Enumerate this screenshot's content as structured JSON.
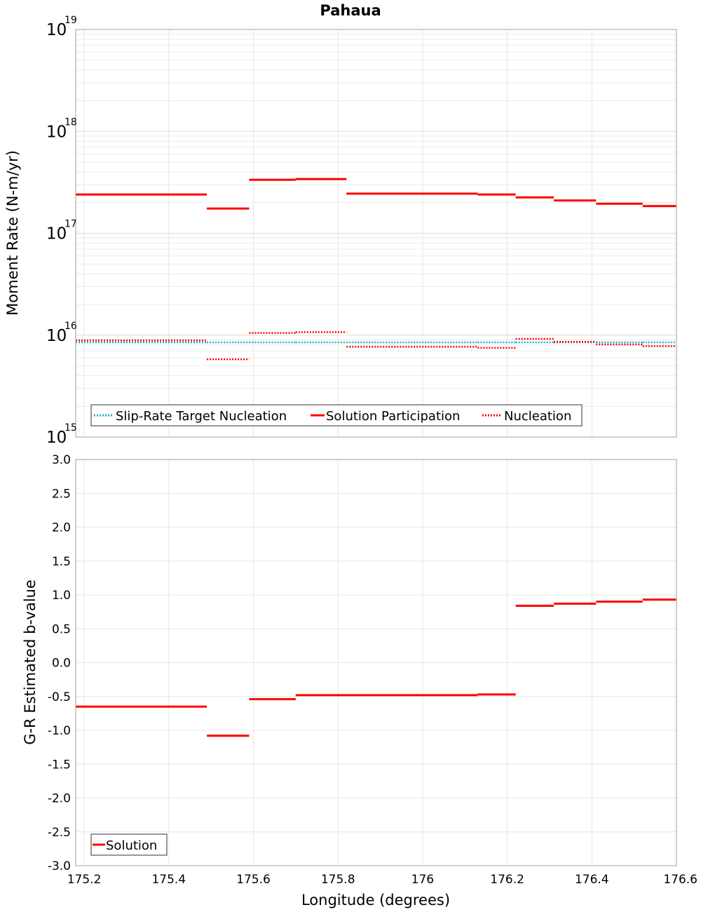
{
  "chart_data": [
    {
      "type": "line",
      "subtype": "step",
      "title": "Pahaua",
      "xlabel": "",
      "ylabel": "Moment Rate (N-m/yr)",
      "yscale": "log",
      "ylim": [
        1000000000000000.0,
        1e+19
      ],
      "xlim": [
        175.18,
        176.6
      ],
      "y_tick_labels": [
        {
          "base": "10",
          "exp": "15",
          "value": 1000000000000000.0
        },
        {
          "base": "10",
          "exp": "16",
          "value": 1e+16
        },
        {
          "base": "10",
          "exp": "17",
          "value": 1e+17
        },
        {
          "base": "10",
          "exp": "18",
          "value": 1e+18
        },
        {
          "base": "10",
          "exp": "19",
          "value": 1e+19
        }
      ],
      "grid": true,
      "legend": {
        "placement": "bottom-left",
        "entries": [
          "Slip-Rate Target Nucleation",
          "Solution Participation",
          "Nucleation"
        ]
      },
      "series": [
        {
          "name": "Slip-Rate Target Nucleation",
          "color": "#20b0c0",
          "style": "dotted",
          "segments": [
            {
              "x0": 175.18,
              "x1": 175.49,
              "y": 8500000000000000.0
            },
            {
              "x0": 175.49,
              "x1": 175.59,
              "y": 8500000000000000.0
            },
            {
              "x0": 175.59,
              "x1": 175.7,
              "y": 8500000000000000.0
            },
            {
              "x0": 175.7,
              "x1": 175.82,
              "y": 8500000000000000.0
            },
            {
              "x0": 175.82,
              "x1": 176.13,
              "y": 8500000000000000.0
            },
            {
              "x0": 176.13,
              "x1": 176.22,
              "y": 8500000000000000.0
            },
            {
              "x0": 176.22,
              "x1": 176.31,
              "y": 8500000000000000.0
            },
            {
              "x0": 176.31,
              "x1": 176.41,
              "y": 8500000000000000.0
            },
            {
              "x0": 176.41,
              "x1": 176.52,
              "y": 8500000000000000.0
            },
            {
              "x0": 176.52,
              "x1": 176.6,
              "y": 8500000000000000.0
            }
          ]
        },
        {
          "name": "Solution Participation",
          "color": "#ff0000",
          "style": "solid",
          "segments": [
            {
              "x0": 175.18,
              "x1": 175.49,
              "y": 2.4e+17
            },
            {
              "x0": 175.49,
              "x1": 175.59,
              "y": 1.75e+17
            },
            {
              "x0": 175.59,
              "x1": 175.7,
              "y": 3.35e+17
            },
            {
              "x0": 175.7,
              "x1": 175.82,
              "y": 3.4e+17
            },
            {
              "x0": 175.82,
              "x1": 176.13,
              "y": 2.45e+17
            },
            {
              "x0": 176.13,
              "x1": 176.22,
              "y": 2.4e+17
            },
            {
              "x0": 176.22,
              "x1": 176.31,
              "y": 2.25e+17
            },
            {
              "x0": 176.31,
              "x1": 176.41,
              "y": 2.1e+17
            },
            {
              "x0": 176.41,
              "x1": 176.52,
              "y": 1.95e+17
            },
            {
              "x0": 176.52,
              "x1": 176.6,
              "y": 1.85e+17
            }
          ]
        },
        {
          "name": "Nucleation",
          "color": "#ff0000",
          "style": "dotted",
          "segments": [
            {
              "x0": 175.18,
              "x1": 175.49,
              "y": 8900000000000000.0
            },
            {
              "x0": 175.49,
              "x1": 175.59,
              "y": 5800000000000000.0
            },
            {
              "x0": 175.59,
              "x1": 175.7,
              "y": 1.05e+16
            },
            {
              "x0": 175.7,
              "x1": 175.82,
              "y": 1.07e+16
            },
            {
              "x0": 175.82,
              "x1": 176.13,
              "y": 7700000000000000.0
            },
            {
              "x0": 176.13,
              "x1": 176.22,
              "y": 7500000000000000.0
            },
            {
              "x0": 176.22,
              "x1": 176.31,
              "y": 9200000000000000.0
            },
            {
              "x0": 176.31,
              "x1": 176.41,
              "y": 8600000000000000.0
            },
            {
              "x0": 176.41,
              "x1": 176.52,
              "y": 8100000000000000.0
            },
            {
              "x0": 176.52,
              "x1": 176.6,
              "y": 7800000000000000.0
            }
          ]
        }
      ]
    },
    {
      "type": "line",
      "subtype": "step",
      "title": "",
      "xlabel": "Longitude (degrees)",
      "ylabel": "G-R Estimated b-value",
      "ylim": [
        -3.0,
        3.0
      ],
      "xlim": [
        175.18,
        176.6
      ],
      "y_ticks": [
        "-3.0",
        "-2.5",
        "-2.0",
        "-1.5",
        "-1.0",
        "-0.5",
        "0.0",
        "0.5",
        "1.0",
        "1.5",
        "2.0",
        "2.5",
        "3.0"
      ],
      "x_ticks": [
        "175.2",
        "175.4",
        "175.6",
        "175.8",
        "176",
        "176.2",
        "176.4",
        "176.6"
      ],
      "grid": true,
      "legend": {
        "placement": "bottom-left",
        "entries": [
          "Solution"
        ]
      },
      "series": [
        {
          "name": "Solution",
          "color": "#ff0000",
          "style": "solid",
          "segments": [
            {
              "x0": 175.18,
              "x1": 175.49,
              "y": -0.65
            },
            {
              "x0": 175.49,
              "x1": 175.59,
              "y": -1.08
            },
            {
              "x0": 175.59,
              "x1": 175.7,
              "y": -0.54
            },
            {
              "x0": 175.7,
              "x1": 175.82,
              "y": -0.48
            },
            {
              "x0": 175.82,
              "x1": 176.13,
              "y": -0.48
            },
            {
              "x0": 176.13,
              "x1": 176.22,
              "y": -0.47
            },
            {
              "x0": 176.22,
              "x1": 176.31,
              "y": 0.84
            },
            {
              "x0": 176.31,
              "x1": 176.41,
              "y": 0.87
            },
            {
              "x0": 176.41,
              "x1": 176.52,
              "y": 0.9
            },
            {
              "x0": 176.52,
              "x1": 176.6,
              "y": 0.93
            }
          ]
        }
      ]
    }
  ]
}
